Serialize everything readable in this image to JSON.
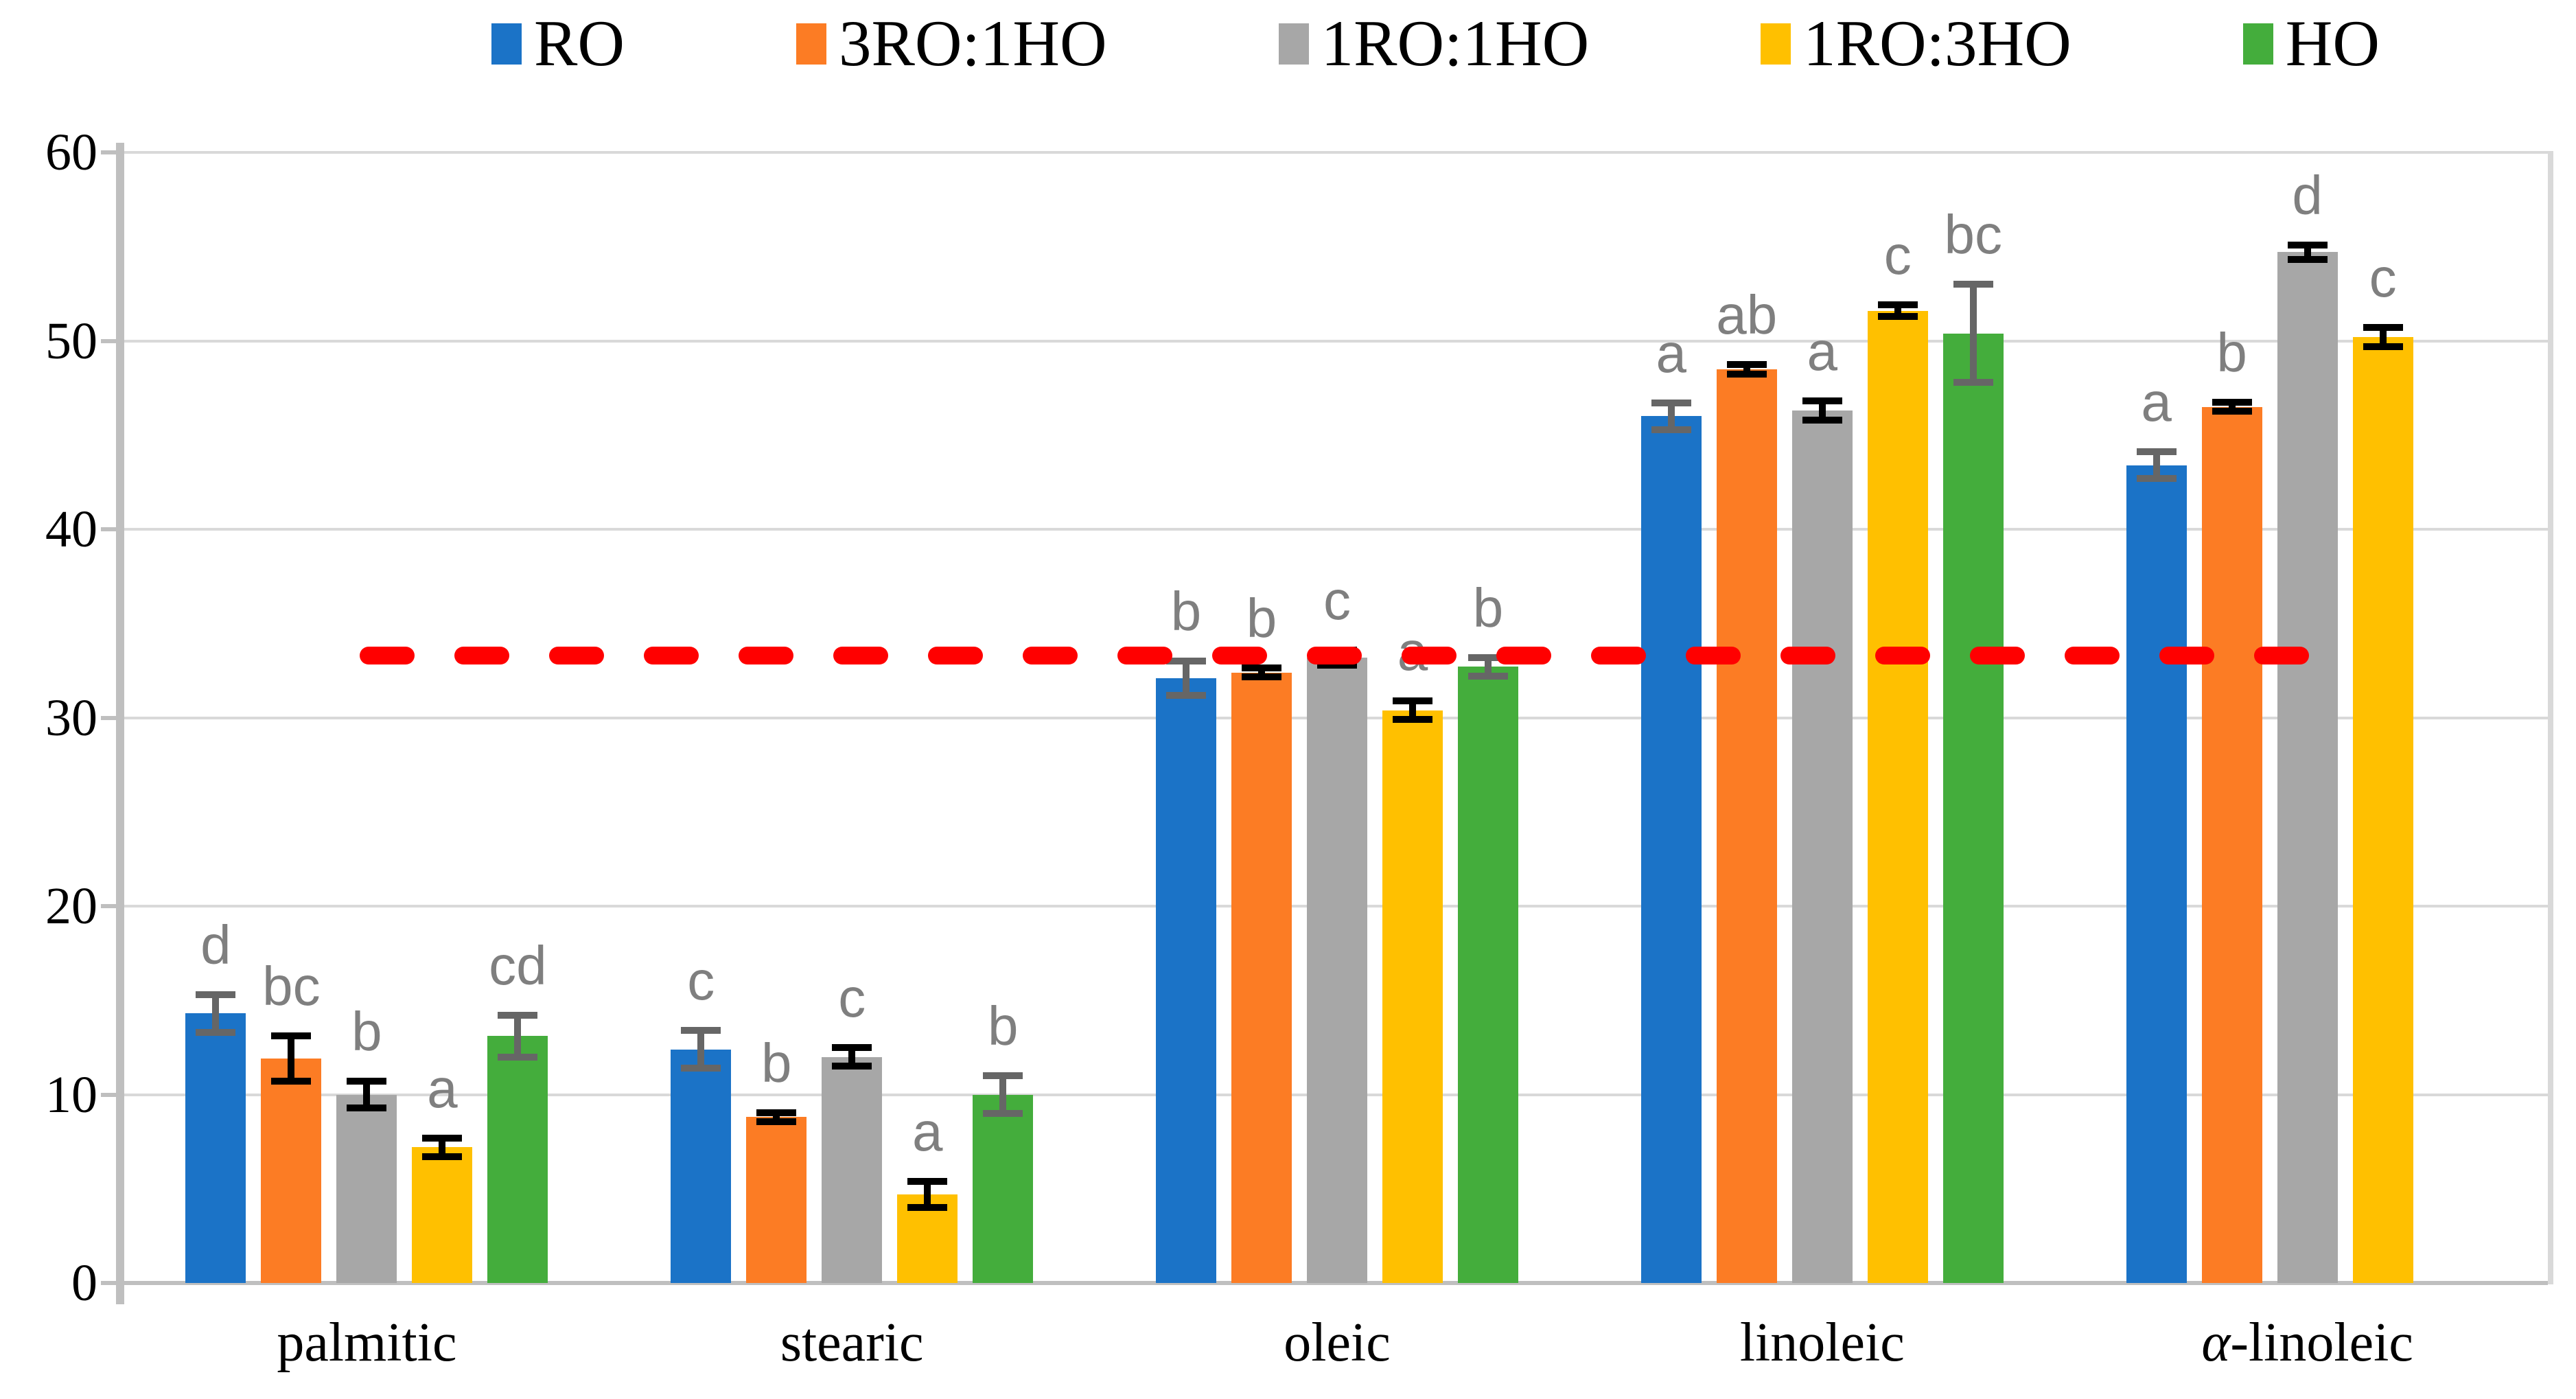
{
  "page": {
    "background": "#FFFFFF"
  },
  "chart_data": {
    "type": "bar",
    "title": "",
    "xlabel": "",
    "ylabel": "",
    "ylim": [
      0,
      60
    ],
    "yticks": [
      0,
      10,
      20,
      30,
      40,
      50,
      60
    ],
    "grid": true,
    "legend_position": "top",
    "categories": [
      "palmitic",
      "stearic",
      "oleic",
      "linoleic",
      "α-linoleic"
    ],
    "series": [
      {
        "name": "RO",
        "color": "#1B73C7",
        "error_color": "#666666",
        "values": [
          14.3,
          12.4,
          32.1,
          46.0,
          43.4
        ],
        "errors": [
          1.0,
          1.0,
          0.9,
          0.7,
          0.7
        ],
        "letters": [
          "d",
          "c",
          "b",
          "a",
          "a"
        ]
      },
      {
        "name": "3RO:1HO",
        "color": "#FC7C24",
        "error_color": "#000000",
        "values": [
          11.9,
          8.8,
          32.4,
          48.5,
          46.5
        ],
        "errors": [
          1.2,
          0.25,
          0.25,
          0.25,
          0.25
        ],
        "letters": [
          "bc",
          "b",
          "b",
          "ab",
          "b"
        ]
      },
      {
        "name": "1RO:1HO",
        "color": "#A7A7A7",
        "error_color": "#000000",
        "values": [
          10.0,
          12.0,
          33.2,
          46.3,
          54.7
        ],
        "errors": [
          0.7,
          0.5,
          0.4,
          0.5,
          0.4
        ],
        "letters": [
          "b",
          "c",
          "c",
          "a",
          "d"
        ]
      },
      {
        "name": "1RO:3HO",
        "color": "#FFC000",
        "error_color": "#000000",
        "values": [
          7.2,
          4.7,
          30.4,
          51.6,
          50.2
        ],
        "errors": [
          0.5,
          0.7,
          0.5,
          0.3,
          0.5
        ],
        "letters": [
          "a",
          "a",
          "a",
          "c",
          "c"
        ]
      },
      {
        "name": "HO",
        "color": "#44AD3C",
        "error_color": "#666666",
        "values": [
          13.1,
          10.0,
          32.7,
          50.4,
          null
        ],
        "errors": [
          1.1,
          1.0,
          0.5,
          2.6,
          null
        ],
        "letters": [
          "cd",
          "b",
          "b",
          "bc",
          ""
        ]
      }
    ],
    "reference_line": {
      "value": 33.3,
      "color": "#FF0000",
      "style": "dashed"
    },
    "colors": {
      "gridline": "#D9D9D9",
      "axis": "#BFBFBF",
      "sig_letter": "#7F7F7F",
      "plot_border_right": "#D9D9D9"
    }
  }
}
